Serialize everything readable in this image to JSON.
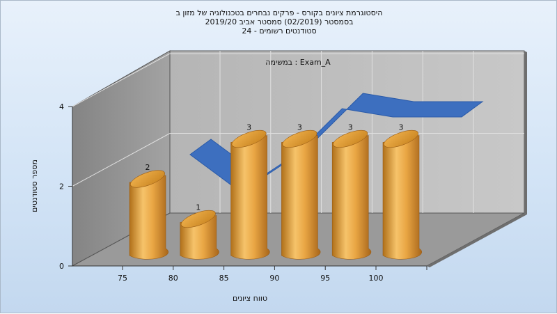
{
  "chart_data": {
    "type": "bar",
    "title": "היסטוגרמת ציונים בקורס - פרקים נבחרים בטכנולוגיה של מזון ב",
    "subtitle_line2": "בסמסטר  (02/2019)  סמסטר אביב 2019/20",
    "subtitle_line3": "סטודנטים רשומים - 24",
    "annotation": "במשימה : Exam_A",
    "xlabel": "טווח ציונים",
    "ylabel": "מספר סטודנטים",
    "categories": [
      "75",
      "80",
      "85",
      "90",
      "95",
      "100"
    ],
    "x_ticks": [
      "75",
      "80",
      "85",
      "90",
      "95",
      "100"
    ],
    "y_ticks": [
      "0",
      "2",
      "4"
    ],
    "ylim": [
      0,
      4
    ],
    "grid": true,
    "series": [
      {
        "type": "bar",
        "values": [
          2,
          1,
          3,
          3,
          3,
          3
        ],
        "color": "#e2a03f"
      },
      {
        "type": "area-line",
        "values": [
          2.7,
          1.8,
          2.6,
          3.8,
          3.6,
          3.6
        ],
        "color": "#3d6fbf"
      }
    ],
    "data_labels": [
      "2",
      "1",
      "3",
      "3",
      "3",
      "3"
    ]
  }
}
